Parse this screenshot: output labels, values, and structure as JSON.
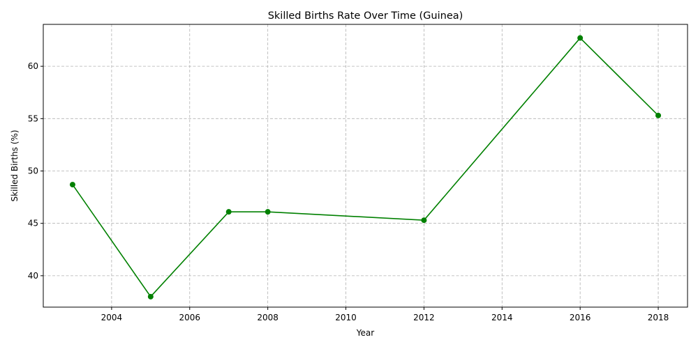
{
  "chart_data": {
    "type": "line",
    "title": "Skilled Births Rate Over Time (Guinea)",
    "xlabel": "Year",
    "ylabel": "Skilled Births (%)",
    "x": [
      2003,
      2005,
      2007,
      2008,
      2012,
      2016,
      2018
    ],
    "series": [
      {
        "values": [
          48.7,
          38.0,
          46.1,
          46.1,
          45.3,
          62.7,
          55.3
        ]
      }
    ],
    "xlim": [
      2002.25,
      2018.75
    ],
    "ylim": [
      37.0,
      64.0
    ],
    "x_ticks": [
      2004,
      2006,
      2008,
      2010,
      2012,
      2014,
      2016,
      2018
    ],
    "y_ticks": [
      40,
      45,
      50,
      55,
      60
    ],
    "grid": true,
    "line_color": "#008000",
    "marker": "circle"
  }
}
